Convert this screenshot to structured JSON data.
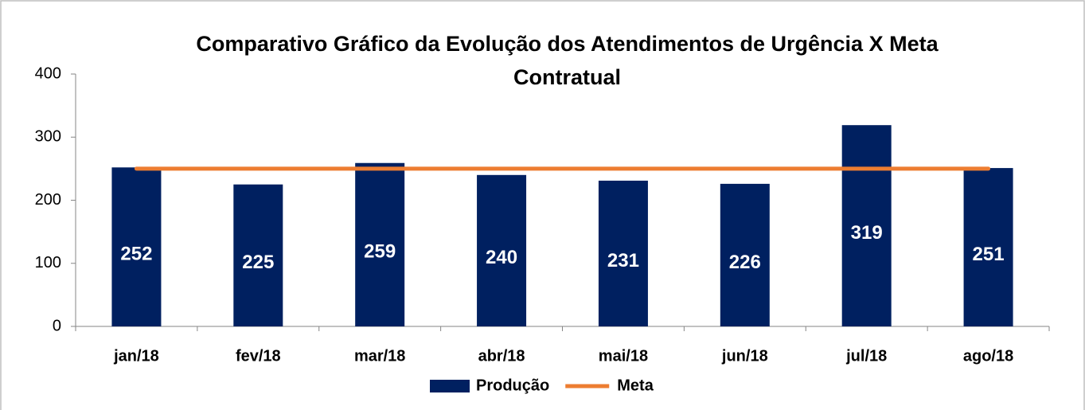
{
  "chart_data": {
    "type": "bar",
    "title": "Comparativo Gráfico da Evolução dos Atendimentos de Urgência X Meta Contratual",
    "categories": [
      "jan/18",
      "fev/18",
      "mar/18",
      "abr/18",
      "mai/18",
      "jun/18",
      "jul/18",
      "ago/18"
    ],
    "series": [
      {
        "name": "Produção",
        "type": "bar",
        "color": "#002060",
        "values": [
          252,
          225,
          259,
          240,
          231,
          226,
          319,
          251
        ]
      },
      {
        "name": "Meta",
        "type": "line",
        "color": "#ed7d31",
        "values": [
          250,
          250,
          250,
          250,
          250,
          250,
          250,
          250
        ]
      }
    ],
    "ylim": [
      0,
      400
    ],
    "yticks": [
      0,
      100,
      200,
      300,
      400
    ],
    "grid": false,
    "legend": "bottom"
  }
}
